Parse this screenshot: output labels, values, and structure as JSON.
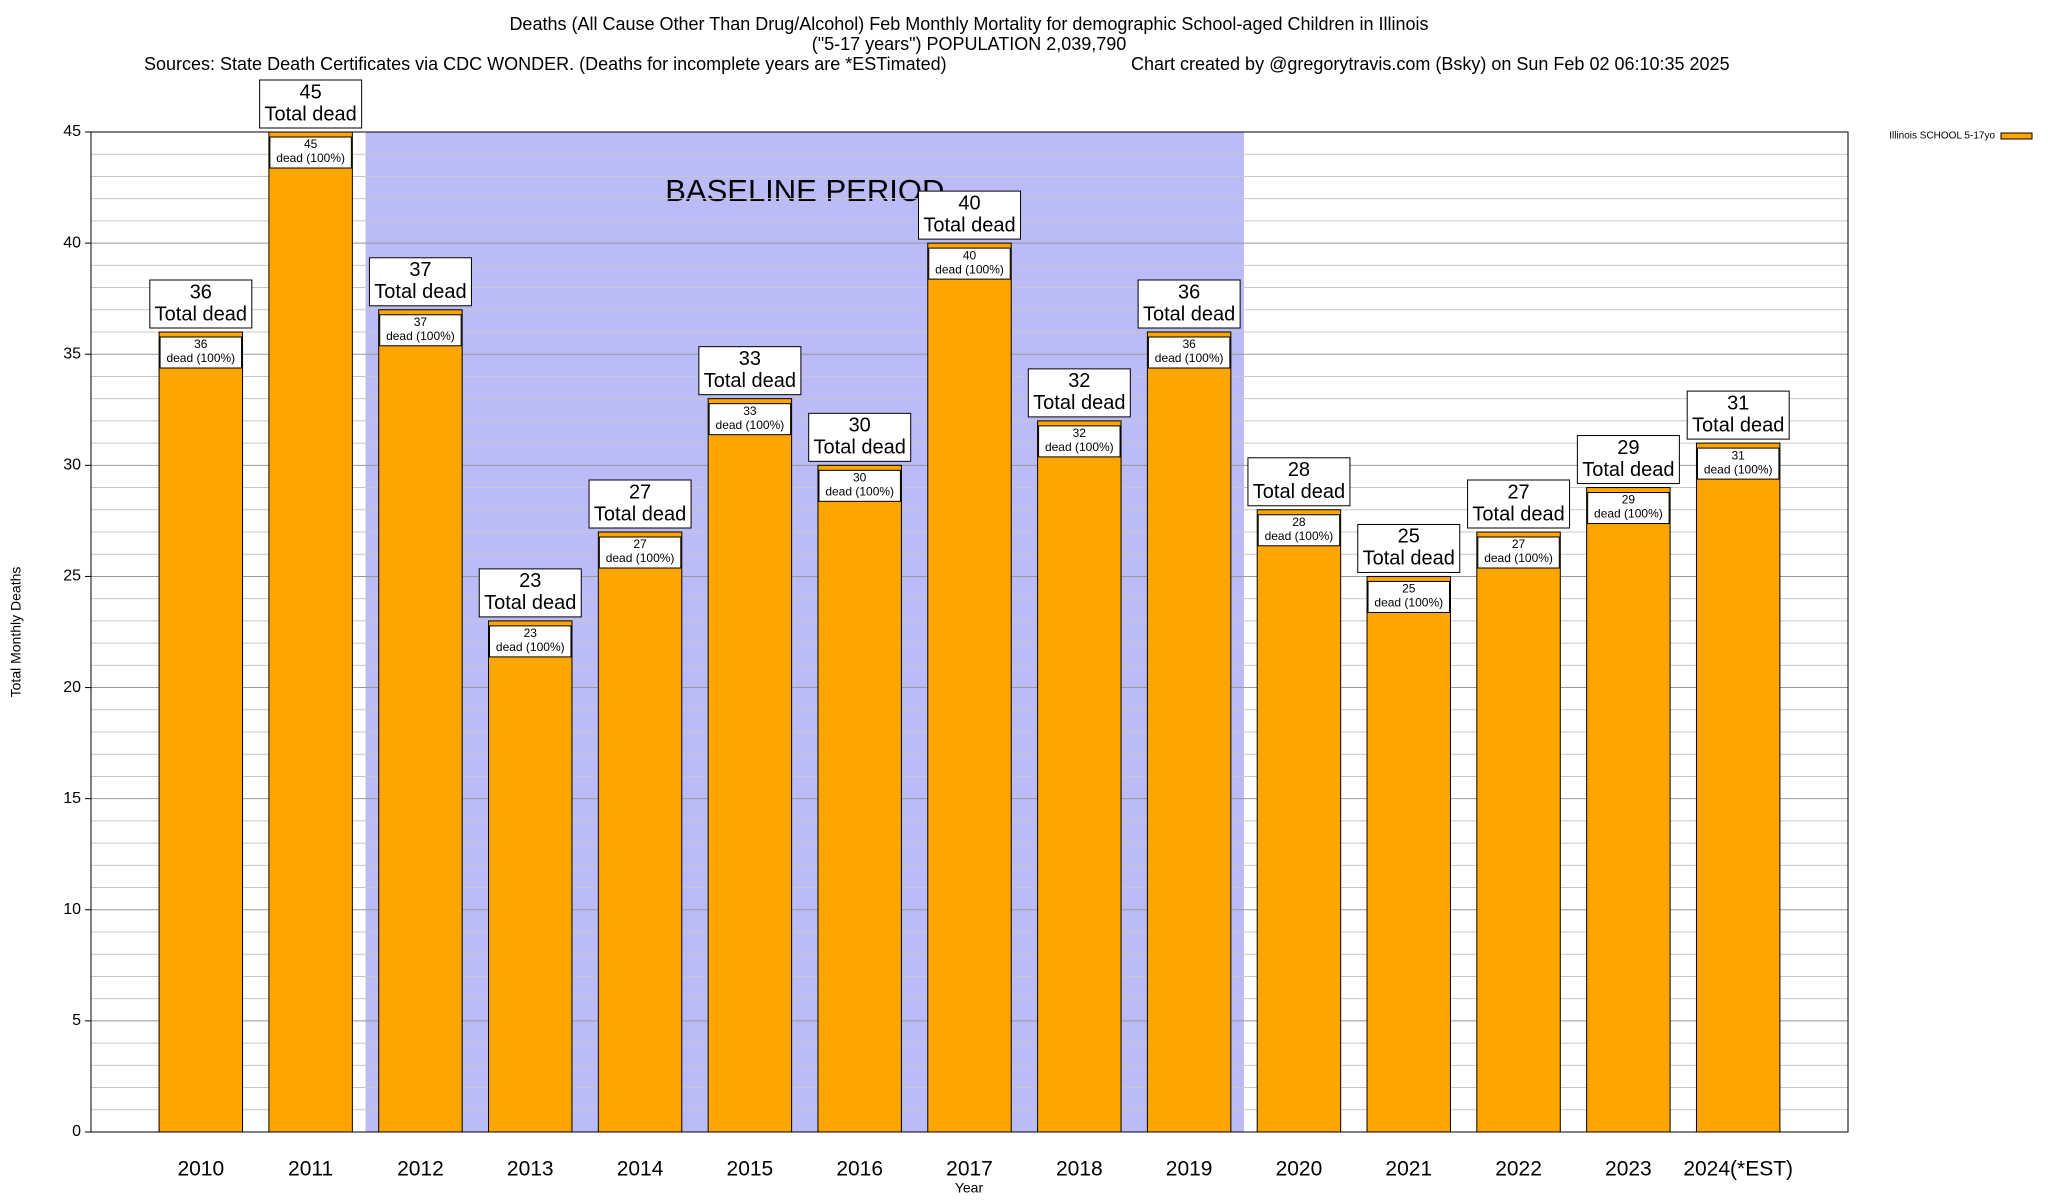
{
  "chart_data": {
    "type": "bar",
    "title": "Deaths (All Cause Other Than Drug/Alcohol) Feb Monthly Mortality for demographic School-aged Children in Illinois",
    "subtitle": "(\"5-17 years\") POPULATION 2,039,790",
    "source": "Sources: State Death Certificates via CDC WONDER. (Deaths for incomplete years are *ESTimated)",
    "credit": "Chart created by @gregorytravis.com (Bsky) on Sun Feb 02 06:10:35 2025",
    "xlabel": "Year",
    "ylabel": "Total Monthly Deaths",
    "categories": [
      "2010",
      "2011",
      "2012",
      "2013",
      "2014",
      "2015",
      "2016",
      "2017",
      "2018",
      "2019",
      "2020",
      "2021",
      "2022",
      "2023",
      "2024(*EST)"
    ],
    "series": [
      {
        "name": "Illinois SCHOOL 5-17yo",
        "color": "#ffa500",
        "values": [
          36,
          45,
          37,
          23,
          27,
          33,
          30,
          40,
          32,
          36,
          28,
          25,
          27,
          29,
          31
        ]
      }
    ],
    "total_label": "Total dead",
    "share_label": "dead (100%)",
    "baseline": {
      "label": "BASELINE PERIOD",
      "start": "2012",
      "end": "2019",
      "color": "#bbbbf8"
    },
    "ylim": [
      0,
      45
    ],
    "yticks": [
      0,
      5,
      10,
      15,
      20,
      25,
      30,
      35,
      40,
      45
    ],
    "grid": true,
    "legend": "top-right"
  }
}
